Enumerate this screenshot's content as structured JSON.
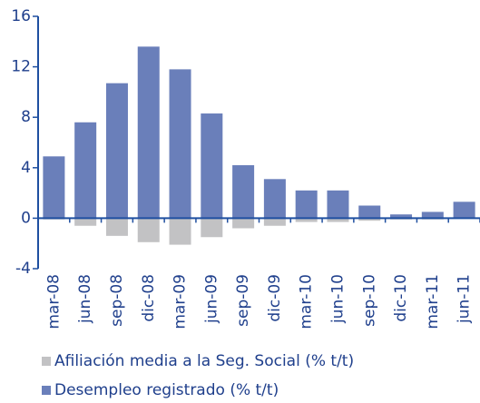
{
  "chart_data": {
    "type": "bar",
    "categories": [
      "mar-08",
      "jun-08",
      "sep-08",
      "dic-08",
      "mar-09",
      "jun-09",
      "sep-09",
      "dic-09",
      "mar-10",
      "jun-10",
      "sep-10",
      "dic-10",
      "mar-11",
      "jun-11"
    ],
    "series": [
      {
        "name": "Afiliación media a la Seg. Social (% t/t)",
        "color": "#c2c2c4",
        "values": [
          -0.1,
          -0.6,
          -1.4,
          -1.9,
          -2.1,
          -1.5,
          -0.8,
          -0.6,
          -0.3,
          -0.3,
          -0.2,
          -0.1,
          -0.1,
          0
        ]
      },
      {
        "name": "Desempleo registrado (% t/t)",
        "color": "#6a7fba",
        "values": [
          4.9,
          7.6,
          10.7,
          13.6,
          11.8,
          8.3,
          4.2,
          3.1,
          2.2,
          2.2,
          1.0,
          0.3,
          0.5,
          1.3
        ]
      }
    ],
    "ylim": [
      -4,
      16
    ],
    "yticks": [
      -4,
      0,
      4,
      8,
      12,
      16
    ]
  }
}
